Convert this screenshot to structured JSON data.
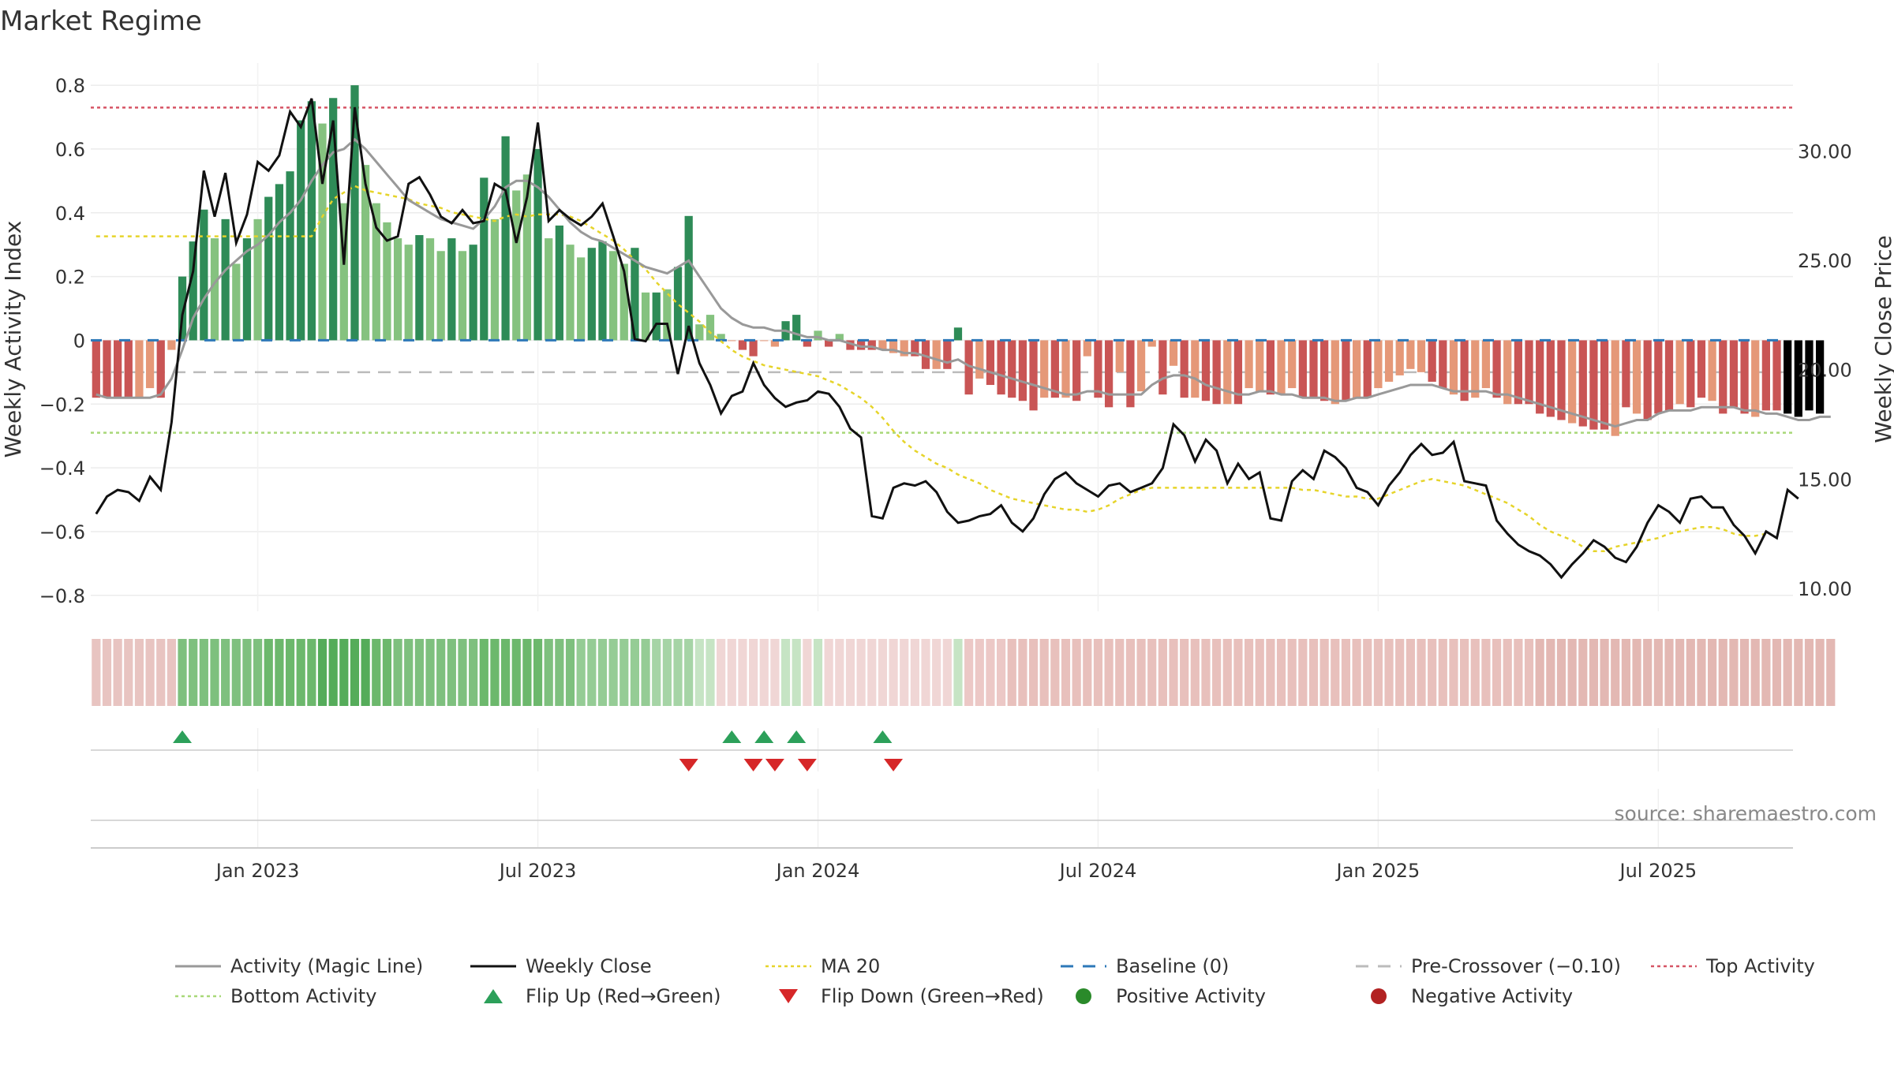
{
  "title": "Market Regime",
  "source": "source: sharemaestro.com",
  "y_left_label": "Weekly Activity Index",
  "y_right_label": "Weekly Close Price",
  "colors": {
    "pos_dark": "#2e8b57",
    "pos_light": "#85c27f",
    "neg_dark": "#c95555",
    "neg_light": "#e59878",
    "magic": "#999999",
    "close": "#111111",
    "ma": "#e6d42a",
    "baseline": "#2d78b8",
    "precross": "#bbbbbb",
    "top": "#d65465",
    "bottom": "#a8d878",
    "flip_up": "#2ca05a",
    "flip_down": "#d62728",
    "pos_dot": "#2a8a2a",
    "neg_dot": "#b22222"
  },
  "legend": [
    {
      "label": "Activity (Magic Line)",
      "kind": "solid",
      "color": "#999999"
    },
    {
      "label": "Weekly Close",
      "kind": "solid",
      "color": "#111111"
    },
    {
      "label": "MA 20",
      "kind": "dotted",
      "color": "#e6d42a"
    },
    {
      "label": "Baseline (0)",
      "kind": "dashed",
      "color": "#2d78b8"
    },
    {
      "label": "Pre-Crossover (−0.10)",
      "kind": "dashed",
      "color": "#bbbbbb"
    },
    {
      "label": "Top Activity",
      "kind": "dotted",
      "color": "#d65465"
    },
    {
      "label": "Bottom Activity",
      "kind": "dotted",
      "color": "#a8d878"
    },
    {
      "label": "Flip Up (Red→Green)",
      "kind": "tri-up",
      "color": "#2ca05a"
    },
    {
      "label": "Flip Down (Green→Red)",
      "kind": "tri-down",
      "color": "#d62728"
    },
    {
      "label": "Positive Activity",
      "kind": "dot",
      "color": "#2a8a2a"
    },
    {
      "label": "Negative Activity",
      "kind": "dot",
      "color": "#b22222"
    }
  ],
  "chart_data": {
    "type": "bar",
    "title": "Market Regime",
    "x_ticks": [
      "Jan 2023",
      "Jul 2023",
      "Jan 2024",
      "Jul 2024",
      "Jan 2025",
      "Jul 2025"
    ],
    "x_tick_weeks": [
      15,
      41,
      67,
      93,
      119,
      145
    ],
    "week_range": [
      0,
      157
    ],
    "y_left": {
      "label": "Weekly Activity Index",
      "range": [
        -0.85,
        0.82
      ],
      "ticks": [
        0.8,
        0.6,
        0.4,
        0.2,
        0,
        -0.2,
        -0.4,
        -0.6,
        -0.8
      ]
    },
    "y_right": {
      "label": "Weekly Close Price",
      "range": [
        8.95,
        33.3
      ],
      "ticks": [
        30.0,
        25.0,
        20.0,
        15.0,
        10.0
      ]
    },
    "reference_lines": {
      "baseline": 0,
      "pre_crossover": -0.1,
      "top_activity": 0.73,
      "bottom_activity": -0.29
    },
    "series": [
      {
        "name": "Activity Index",
        "values": [
          -0.18,
          -0.18,
          -0.18,
          -0.18,
          -0.18,
          -0.15,
          -0.18,
          -0.03,
          0.2,
          0.31,
          0.41,
          0.32,
          0.38,
          0.24,
          0.32,
          0.38,
          0.45,
          0.49,
          0.53,
          0.69,
          0.75,
          0.68,
          0.76,
          0.43,
          0.8,
          0.55,
          0.43,
          0.37,
          0.32,
          0.3,
          0.33,
          0.32,
          0.28,
          0.32,
          0.28,
          0.3,
          0.51,
          0.38,
          0.64,
          0.47,
          0.52,
          0.6,
          0.32,
          0.36,
          0.3,
          0.26,
          0.29,
          0.31,
          0.28,
          0.24,
          0.29,
          0.15,
          0.15,
          0.16,
          0.23,
          0.39,
          0.05,
          0.08,
          0.02,
          0.0,
          -0.03,
          -0.05,
          0.0,
          -0.02,
          0.06,
          0.08,
          -0.02,
          0.03,
          -0.02,
          0.02,
          -0.03,
          -0.03,
          -0.03,
          -0.03,
          -0.04,
          -0.05,
          -0.05,
          -0.09,
          -0.09,
          -0.09,
          0.04,
          -0.17,
          -0.12,
          -0.14,
          -0.17,
          -0.18,
          -0.19,
          -0.22,
          -0.18,
          -0.18,
          -0.18,
          -0.19,
          -0.05,
          -0.18,
          -0.21,
          -0.1,
          -0.21,
          -0.16,
          -0.02,
          -0.17,
          -0.08,
          -0.18,
          -0.18,
          -0.19,
          -0.2,
          -0.2,
          -0.2,
          -0.15,
          -0.16,
          -0.17,
          -0.17,
          -0.15,
          -0.18,
          -0.18,
          -0.19,
          -0.2,
          -0.19,
          -0.18,
          -0.18,
          -0.15,
          -0.13,
          -0.11,
          -0.09,
          -0.1,
          -0.13,
          -0.15,
          -0.17,
          -0.19,
          -0.18,
          -0.15,
          -0.18,
          -0.2,
          -0.2,
          -0.2,
          -0.23,
          -0.24,
          -0.25,
          -0.26,
          -0.27,
          -0.28,
          -0.28,
          -0.3,
          -0.21,
          -0.23,
          -0.25,
          -0.23,
          -0.22,
          -0.2,
          -0.21,
          -0.18,
          -0.19,
          -0.23,
          -0.21,
          -0.23,
          -0.24,
          -0.22,
          -0.22,
          -0.23,
          -0.24,
          -0.22,
          -0.23
        ],
        "colors": [
          "#c95555",
          "#c95555",
          "#c95555",
          "#c95555",
          "#e59878",
          "#e59878",
          "#c95555",
          "#e59878",
          "#2e8b57",
          "#2e8b57",
          "#2e8b57",
          "#85c27f",
          "#2e8b57",
          "#85c27f",
          "#2e8b57",
          "#85c27f",
          "#2e8b57",
          "#2e8b57",
          "#2e8b57",
          "#2e8b57",
          "#2e8b57",
          "#85c27f",
          "#2e8b57",
          "#85c27f",
          "#2e8b57",
          "#85c27f",
          "#85c27f",
          "#85c27f",
          "#85c27f",
          "#85c27f",
          "#2e8b57",
          "#85c27f",
          "#85c27f",
          "#2e8b57",
          "#85c27f",
          "#2e8b57",
          "#2e8b57",
          "#85c27f",
          "#2e8b57",
          "#85c27f",
          "#85c27f",
          "#2e8b57",
          "#85c27f",
          "#2e8b57",
          "#85c27f",
          "#85c27f",
          "#2e8b57",
          "#2e8b57",
          "#85c27f",
          "#85c27f",
          "#2e8b57",
          "#85c27f",
          "#2e8b57",
          "#85c27f",
          "#2e8b57",
          "#2e8b57",
          "#85c27f",
          "#85c27f",
          "#85c27f",
          "#e59878",
          "#c95555",
          "#c95555",
          "#e59878",
          "#e59878",
          "#2e8b57",
          "#2e8b57",
          "#c95555",
          "#85c27f",
          "#c95555",
          "#85c27f",
          "#c95555",
          "#c95555",
          "#c95555",
          "#e59878",
          "#e59878",
          "#e59878",
          "#c95555",
          "#c95555",
          "#e59878",
          "#c95555",
          "#2e8b57",
          "#c95555",
          "#e59878",
          "#c95555",
          "#c95555",
          "#c95555",
          "#c95555",
          "#c95555",
          "#e59878",
          "#c95555",
          "#e59878",
          "#c95555",
          "#e59878",
          "#c95555",
          "#c95555",
          "#e59878",
          "#c95555",
          "#e59878",
          "#e59878",
          "#c95555",
          "#e59878",
          "#c95555",
          "#e59878",
          "#c95555",
          "#c95555",
          "#e59878",
          "#c95555",
          "#e59878",
          "#e59878",
          "#c95555",
          "#e59878",
          "#e59878",
          "#c95555",
          "#c95555",
          "#c95555",
          "#e59878",
          "#c95555",
          "#e59878",
          "#c95555",
          "#e59878",
          "#e59878",
          "#e59878",
          "#e59878",
          "#e59878",
          "#c95555",
          "#c95555",
          "#e59878",
          "#c95555",
          "#e59878",
          "#e59878",
          "#c95555",
          "#e59878",
          "#c95555",
          "#c95555",
          "#c95555",
          "#c95555",
          "#c95555",
          "#e59878",
          "#c95555",
          "#c95555",
          "#c95555",
          "#e59878",
          "#c95555",
          "#e59878",
          "#c95555",
          "#c95555",
          "#c95555",
          "#e59878",
          "#c95555",
          "#c95555",
          "#e59878",
          "#c95555",
          "#c95555",
          "#c95555",
          "#e59878",
          "#c95555",
          "#c95555"
        ]
      },
      {
        "name": "Activity (Magic Line)",
        "values": [
          -0.17,
          -0.18,
          -0.18,
          -0.18,
          -0.18,
          -0.18,
          -0.17,
          -0.12,
          -0.03,
          0.07,
          0.13,
          0.18,
          0.22,
          0.25,
          0.28,
          0.3,
          0.33,
          0.37,
          0.4,
          0.44,
          0.5,
          0.55,
          0.59,
          0.6,
          0.63,
          0.6,
          0.56,
          0.52,
          0.48,
          0.44,
          0.42,
          0.4,
          0.38,
          0.37,
          0.36,
          0.35,
          0.38,
          0.42,
          0.48,
          0.5,
          0.5,
          0.48,
          0.45,
          0.41,
          0.37,
          0.34,
          0.32,
          0.31,
          0.29,
          0.27,
          0.25,
          0.23,
          0.22,
          0.21,
          0.23,
          0.25,
          0.2,
          0.15,
          0.1,
          0.07,
          0.05,
          0.04,
          0.04,
          0.03,
          0.03,
          0.02,
          0.01,
          0.01,
          0.0,
          0.0,
          -0.01,
          -0.02,
          -0.02,
          -0.03,
          -0.03,
          -0.04,
          -0.04,
          -0.05,
          -0.06,
          -0.07,
          -0.06,
          -0.08,
          -0.09,
          -0.1,
          -0.11,
          -0.12,
          -0.13,
          -0.14,
          -0.15,
          -0.16,
          -0.17,
          -0.17,
          -0.16,
          -0.16,
          -0.17,
          -0.17,
          -0.17,
          -0.17,
          -0.14,
          -0.12,
          -0.11,
          -0.11,
          -0.12,
          -0.14,
          -0.15,
          -0.16,
          -0.17,
          -0.17,
          -0.16,
          -0.16,
          -0.17,
          -0.17,
          -0.18,
          -0.18,
          -0.18,
          -0.19,
          -0.19,
          -0.18,
          -0.18,
          -0.17,
          -0.16,
          -0.15,
          -0.14,
          -0.14,
          -0.14,
          -0.15,
          -0.16,
          -0.16,
          -0.16,
          -0.16,
          -0.17,
          -0.17,
          -0.18,
          -0.19,
          -0.2,
          -0.21,
          -0.22,
          -0.23,
          -0.24,
          -0.25,
          -0.26,
          -0.27,
          -0.26,
          -0.25,
          -0.25,
          -0.23,
          -0.22,
          -0.22,
          -0.22,
          -0.21,
          -0.21,
          -0.21,
          -0.21,
          -0.22,
          -0.22,
          -0.23,
          -0.23,
          -0.24,
          -0.25,
          -0.25,
          -0.24,
          -0.24
        ]
      },
      {
        "name": "Weekly Close",
        "values": [
          13.4,
          14.2,
          14.5,
          14.4,
          14.0,
          15.1,
          14.5,
          17.6,
          22.5,
          24.5,
          29.1,
          27.0,
          29.0,
          25.8,
          27.1,
          29.5,
          29.1,
          29.8,
          31.8,
          31.1,
          32.4,
          28.5,
          31.4,
          24.8,
          32.0,
          28.5,
          26.5,
          25.9,
          26.1,
          28.5,
          28.8,
          28.0,
          27.0,
          26.7,
          27.3,
          26.7,
          26.8,
          28.5,
          28.2,
          25.8,
          27.9,
          31.3,
          26.8,
          27.3,
          26.9,
          26.6,
          27.0,
          27.6,
          26.1,
          24.5,
          21.4,
          21.3,
          22.1,
          22.1,
          19.8,
          22.0,
          20.3,
          19.3,
          18.0,
          18.8,
          19.0,
          20.3,
          19.3,
          18.7,
          18.3,
          18.5,
          18.6,
          19.0,
          18.9,
          18.3,
          17.3,
          16.9,
          13.3,
          13.2,
          14.6,
          14.8,
          14.7,
          14.9,
          14.4,
          13.5,
          13.0,
          13.1,
          13.3,
          13.4,
          13.8,
          13.0,
          12.6,
          13.2,
          14.3,
          15.0,
          15.3,
          14.8,
          14.5,
          14.2,
          14.7,
          14.8,
          14.4,
          14.6,
          14.8,
          15.5,
          17.5,
          17.0,
          15.8,
          16.8,
          16.3,
          14.8,
          15.7,
          15.0,
          15.3,
          13.2,
          13.1,
          14.9,
          15.4,
          15.0,
          16.3,
          16.0,
          15.5,
          14.6,
          14.4,
          13.8,
          14.7,
          15.3,
          16.1,
          16.6,
          16.1,
          16.2,
          16.7,
          14.9,
          14.8,
          14.7,
          13.1,
          12.5,
          12.0,
          11.7,
          11.5,
          11.1,
          10.5,
          11.1,
          11.6,
          12.2,
          11.9,
          11.4,
          11.2,
          11.9,
          13.0,
          13.8,
          13.5,
          13.0,
          14.1,
          14.2,
          13.7,
          13.7,
          12.9,
          12.4,
          11.6,
          12.6,
          12.3,
          14.5,
          14.1
        ]
      },
      {
        "name": "MA 20",
        "values": [
          26.1,
          26.1,
          26.1,
          26.1,
          26.1,
          26.1,
          26.1,
          26.1,
          26.1,
          26.1,
          26.1,
          26.1,
          26.1,
          26.1,
          26.1,
          26.1,
          26.1,
          26.1,
          26.1,
          26.1,
          26.1,
          27.0,
          27.8,
          28.1,
          28.4,
          28.2,
          28.1,
          28.0,
          27.9,
          27.8,
          27.6,
          27.5,
          27.4,
          27.2,
          27.1,
          27.0,
          26.9,
          26.8,
          27.0,
          27.1,
          27.0,
          27.1,
          27.1,
          27.1,
          27.0,
          26.8,
          26.5,
          26.2,
          25.9,
          25.5,
          25.0,
          24.6,
          24.0,
          23.5,
          23.0,
          22.6,
          22.2,
          21.7,
          21.3,
          20.9,
          20.6,
          20.4,
          20.2,
          20.1,
          20.0,
          19.9,
          19.8,
          19.7,
          19.5,
          19.3,
          19.0,
          18.7,
          18.3,
          17.8,
          17.2,
          16.7,
          16.3,
          16.0,
          15.7,
          15.5,
          15.2,
          15.0,
          14.8,
          14.5,
          14.3,
          14.1,
          14.0,
          13.9,
          13.8,
          13.7,
          13.6,
          13.6,
          13.5,
          13.6,
          13.8,
          14.1,
          14.3,
          14.5,
          14.6,
          14.6,
          14.6,
          14.6,
          14.6,
          14.6,
          14.6,
          14.6,
          14.6,
          14.6,
          14.6,
          14.6,
          14.6,
          14.6,
          14.5,
          14.5,
          14.4,
          14.3,
          14.2,
          14.2,
          14.1,
          14.1,
          14.3,
          14.5,
          14.7,
          14.9,
          15.0,
          14.9,
          14.8,
          14.7,
          14.5,
          14.3,
          14.1,
          13.9,
          13.6,
          13.3,
          12.9,
          12.6,
          12.4,
          12.2,
          11.9,
          11.7,
          11.7,
          11.9,
          12.0,
          12.1,
          12.2,
          12.3,
          12.5,
          12.6,
          12.7,
          12.8,
          12.8,
          12.7,
          12.5,
          12.4,
          12.4,
          12.5
        ]
      }
    ],
    "flip_up_weeks": [
      8,
      59,
      62,
      65,
      73
    ],
    "flip_down_weeks": [
      55,
      61,
      63,
      66,
      74
    ],
    "regime_strip_colors": [
      "#e8c4c1",
      "#e8c4c1",
      "#e8c4c1",
      "#e8c4c1",
      "#e8c4c1",
      "#e8c4c1",
      "#e8c4c1",
      "#e8c4c1",
      "#7ec07e",
      "#7ec07e",
      "#7ec07e",
      "#7ec07e",
      "#7ec07e",
      "#7ec07e",
      "#7ec07e",
      "#7ec07e",
      "#6cb86c",
      "#6cb86c",
      "#6cb86c",
      "#6cb86c",
      "#6cb86c",
      "#55ac5a",
      "#55ac5a",
      "#55ac5a",
      "#55ac5a",
      "#55ac5a",
      "#6cb86c",
      "#6cb86c",
      "#7ec07e",
      "#7ec07e",
      "#7ec07e",
      "#7ec07e",
      "#7ec07e",
      "#7ec07e",
      "#7ec07e",
      "#7ec07e",
      "#6cb86c",
      "#6cb86c",
      "#6cb86c",
      "#6cb86c",
      "#6cb86c",
      "#6cb86c",
      "#7ec07e",
      "#7ec07e",
      "#7ec07e",
      "#95cc95",
      "#95cc95",
      "#95cc95",
      "#95cc95",
      "#95cc95",
      "#95cc95",
      "#95cc95",
      "#a6d4a6",
      "#a6d4a6",
      "#a6d4a6",
      "#a6d4a6",
      "#c6e4c4",
      "#c6e4c4",
      "#f0d6d5",
      "#f0d6d5",
      "#f0d6d5",
      "#f0d6d5",
      "#f0d6d5",
      "#f0d6d5",
      "#c6e4c4",
      "#c6e4c4",
      "#f0d6d5",
      "#c6e4c4",
      "#f0d6d5",
      "#f0d6d5",
      "#f0d6d5",
      "#f0d6d5",
      "#f0d6d5",
      "#f0d6d5",
      "#f0d6d5",
      "#f0d6d5",
      "#f0d6d5",
      "#f0d6d5",
      "#f0d6d5",
      "#f0d6d5",
      "#c6e4c4",
      "#ecc8c6",
      "#ecc8c6",
      "#ecc8c6",
      "#ecc8c6",
      "#e8c0bc",
      "#e8c0bc",
      "#e8c0bc",
      "#e8c0bc",
      "#e8c0bc",
      "#e8c0bc",
      "#e8c0bc",
      "#e8c0bc",
      "#e8c0bc",
      "#e8c0bc",
      "#e8c0bc",
      "#e8c0bc",
      "#e8c0bc",
      "#e8c0bc",
      "#e8c0bc",
      "#e8c0bc",
      "#e8c0bc",
      "#e8c0bc",
      "#e8c0bc",
      "#e8c0bc",
      "#e8c0bc",
      "#e8c0bc",
      "#e8c0bc",
      "#e8c0bc",
      "#e8c0bc",
      "#e8c0bc",
      "#e8c0bc",
      "#e8c0bc",
      "#e8c0bc",
      "#e8c0bc",
      "#e8c0bc",
      "#e8c0bc",
      "#e8c0bc",
      "#e8c0bc",
      "#e8c0bc",
      "#e8c0bc",
      "#e8c0bc",
      "#e8c0bc",
      "#e8c0bc",
      "#e8c0bc",
      "#e8c0bc",
      "#e8c0bc",
      "#e8c0bc",
      "#e8c0bc",
      "#e8c0bc",
      "#e8c0bc",
      "#e8c0bc",
      "#e8c0bc",
      "#e8c0bc",
      "#e3b8b3",
      "#e3b8b3",
      "#e3b8b3",
      "#e3b8b3",
      "#e3b8b3",
      "#e3b8b3",
      "#e3b8b3",
      "#e3b8b3",
      "#e3b8b3",
      "#e3b8b3",
      "#e3b8b3",
      "#e3b8b3",
      "#e3b8b3",
      "#e3b8b3",
      "#e3b8b3",
      "#e3b8b3",
      "#e3b8b3",
      "#e3b8b3",
      "#e3b8b3",
      "#e3b8b3",
      "#e3b8b3",
      "#e3b8b3",
      "#e3b8b3",
      "#e3b8b3",
      "#e3b8b3",
      "#e3b8b3",
      "#e3b8b3",
      "#e3b8b3"
    ],
    "legend_placement": "bottom",
    "grid": true
  }
}
